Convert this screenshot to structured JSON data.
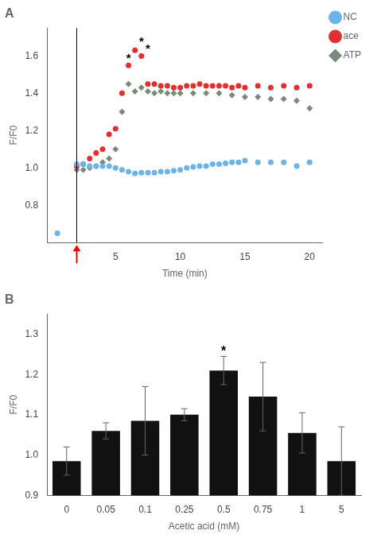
{
  "chart_data": [
    {
      "type": "scatter",
      "title": "A",
      "xlabel": "Time (min)",
      "ylabel": "F/F0",
      "xlim": [
        -0.3,
        21
      ],
      "ylim": [
        0.6,
        1.75
      ],
      "xticks": [
        5,
        10,
        15,
        20
      ],
      "yticks": [
        0.8,
        {
          "value": 1.0,
          "label": "1.0"
        },
        1.2,
        1.4,
        1.6
      ],
      "grid": false,
      "legend": "right",
      "series": [
        {
          "name": "NC",
          "color": "#6ab4e8",
          "marker": "circle",
          "x": [
            0.5,
            2.0,
            2.5,
            3.0,
            3.5,
            4.0,
            4.5,
            5.0,
            5.5,
            6.0,
            6.5,
            7.0,
            7.5,
            8.0,
            8.5,
            9.0,
            9.5,
            10.0,
            10.5,
            11.0,
            11.5,
            12.0,
            12.5,
            13.0,
            13.5,
            14.0,
            14.5,
            15.0,
            16.0,
            17.0,
            18.0,
            19.0,
            20.0
          ],
          "values": [
            0.65,
            1.02,
            1.02,
            1.01,
            1.01,
            1.01,
            1.01,
            1.0,
            0.99,
            0.98,
            0.97,
            0.975,
            0.975,
            0.975,
            0.98,
            0.98,
            0.985,
            0.99,
            1.0,
            1.005,
            1.01,
            1.01,
            1.02,
            1.02,
            1.025,
            1.03,
            1.03,
            1.04,
            1.03,
            1.03,
            1.03,
            1.01,
            1.03
          ]
        },
        {
          "name": "ace",
          "color": "#e03030",
          "marker": "circle",
          "x": [
            2.0,
            2.5,
            3.0,
            3.5,
            4.0,
            4.5,
            5.0,
            5.5,
            6.0,
            6.5,
            7.0,
            7.5,
            8.0,
            8.5,
            9.0,
            9.5,
            10.0,
            10.5,
            11.0,
            11.5,
            12.0,
            12.5,
            13.0,
            13.5,
            14.0,
            14.5,
            15.0,
            16.0,
            17.0,
            18.0,
            19.0,
            20.0
          ],
          "values": [
            1.01,
            1.02,
            1.05,
            1.08,
            1.1,
            1.18,
            1.21,
            1.4,
            1.55,
            1.63,
            1.6,
            1.45,
            1.45,
            1.44,
            1.44,
            1.43,
            1.43,
            1.44,
            1.44,
            1.45,
            1.44,
            1.44,
            1.44,
            1.44,
            1.43,
            1.44,
            1.43,
            1.44,
            1.43,
            1.44,
            1.43,
            1.44
          ]
        },
        {
          "name": "ATP",
          "color": "#7a8a7a",
          "marker": "diamond",
          "x": [
            2.0,
            2.5,
            3.0,
            3.5,
            4.0,
            4.5,
            5.0,
            5.5,
            6.0,
            6.5,
            7.0,
            7.5,
            8.0,
            8.5,
            9.0,
            9.5,
            10.0,
            11.0,
            12.0,
            13.0,
            14.0,
            15.0,
            16.0,
            17.0,
            18.0,
            19.0,
            20.0
          ],
          "values": [
            0.99,
            0.99,
            1.0,
            1.01,
            1.03,
            1.05,
            1.1,
            1.3,
            1.45,
            1.41,
            1.43,
            1.41,
            1.4,
            1.41,
            1.4,
            1.4,
            1.4,
            1.4,
            1.4,
            1.4,
            1.39,
            1.38,
            1.38,
            1.37,
            1.37,
            1.36,
            1.32
          ]
        }
      ],
      "vlines": [
        {
          "x": 2,
          "color": "black"
        }
      ],
      "arrows": [
        {
          "x": 2,
          "color": "red"
        }
      ],
      "annotations": [
        {
          "text": "*",
          "x": 6.0,
          "y": 1.57
        },
        {
          "text": "*",
          "x": 7.0,
          "y": 1.66
        },
        {
          "text": "*",
          "x": 7.5,
          "y": 1.62
        }
      ]
    },
    {
      "type": "bar",
      "title": "B",
      "xlabel": "Acetic acid (mM)",
      "ylabel": "F/F0",
      "categories": [
        "0",
        "0.05",
        "0.1",
        "0.25",
        "0.5",
        "0.75",
        "1",
        "5"
      ],
      "values": [
        0.985,
        1.06,
        1.085,
        1.1,
        1.21,
        1.145,
        1.055,
        0.985
      ],
      "errors": [
        0.035,
        0.02,
        0.085,
        0.015,
        0.035,
        0.085,
        0.05,
        0.085
      ],
      "color": "#111111",
      "error_color": "#666666",
      "ylim": [
        0.9,
        1.35
      ],
      "yticks": [
        0.9,
        {
          "value": 1.0,
          "label": "1.0"
        },
        1.1,
        1.2,
        1.3
      ],
      "grid": false,
      "annotations": [
        {
          "text": "*",
          "x": "0.5"
        }
      ]
    }
  ]
}
